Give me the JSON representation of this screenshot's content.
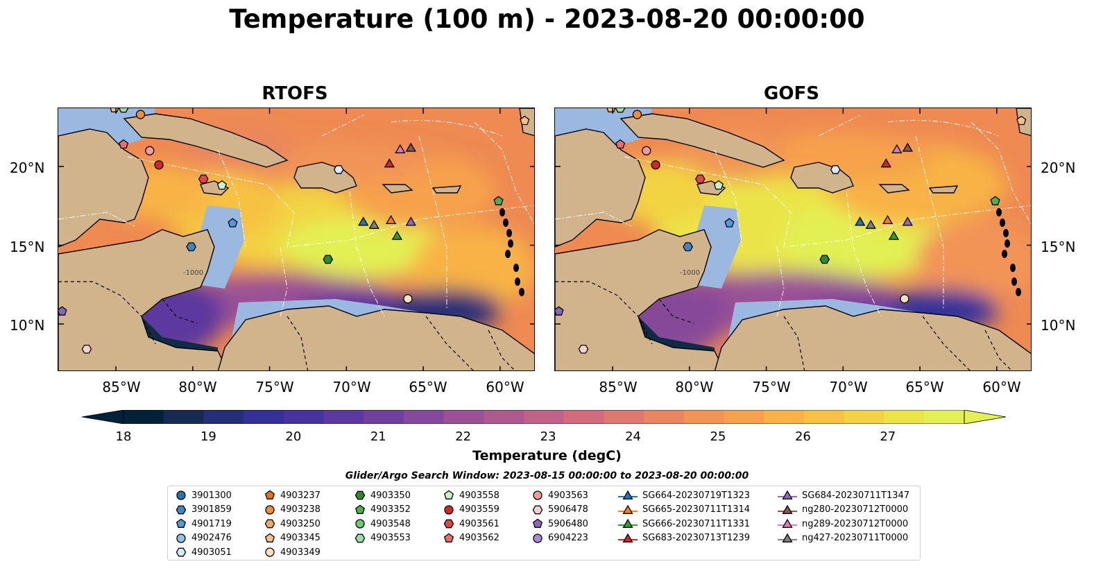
{
  "title": "Temperature (100 m) - 2023-08-20 00:00:00",
  "panels": [
    "RTOFS",
    "GOFS"
  ],
  "lat_labels": [
    "20°N",
    "15°N",
    "10°N"
  ],
  "lon_labels": [
    "85°W",
    "80°W",
    "75°W",
    "70°W",
    "65°W",
    "60°W"
  ],
  "colors": {
    "ocean_warm": "#f4a03c",
    "land": "#d2b48c",
    "shelf": "#9ab8e0",
    "deep": "#102a44"
  },
  "colorbar": {
    "label": "Temperature (degC)",
    "ticks": [
      "18",
      "19",
      "20",
      "21",
      "22",
      "23",
      "24",
      "25",
      "26",
      "27"
    ],
    "colors": [
      "#04213a",
      "#162a52",
      "#252f78",
      "#33309a",
      "#46339f",
      "#5b399f",
      "#71409c",
      "#86489a",
      "#9a5196",
      "#ae5a8f",
      "#c16388",
      "#d16c7d",
      "#de7870",
      "#e98661",
      "#f19456",
      "#f6a24c",
      "#f8b245",
      "#f7c243",
      "#f3d343",
      "#ebe449",
      "#e2f052"
    ]
  },
  "contour_label": "-1000",
  "search_window": "Glider/Argo Search Window: 2023-08-15 00:00:00 to 2023-08-20 00:00:00",
  "legend": [
    {
      "label": "3901300",
      "shape": "circle",
      "color": "#1f77b4"
    },
    {
      "label": "3901859",
      "shape": "hexagon",
      "color": "#3a88c4"
    },
    {
      "label": "4901719",
      "shape": "pentagon",
      "color": "#4f9ad8"
    },
    {
      "label": "4902476",
      "shape": "circle",
      "color": "#8fc1e6"
    },
    {
      "label": "4903051",
      "shape": "hexagon",
      "color": "#d6eaf8"
    },
    {
      "label": "4903237",
      "shape": "pentagon",
      "color": "#e6711d"
    },
    {
      "label": "4903238",
      "shape": "circle",
      "color": "#f28e3b"
    },
    {
      "label": "4903250",
      "shape": "hexagon",
      "color": "#f5a860"
    },
    {
      "label": "4903345",
      "shape": "pentagon",
      "color": "#f8c088"
    },
    {
      "label": "4903349",
      "shape": "circle",
      "color": "#fde0bf"
    },
    {
      "label": "4903350",
      "shape": "hexagon",
      "color": "#2c8a2c"
    },
    {
      "label": "4903352",
      "shape": "pentagon",
      "color": "#4caf4c"
    },
    {
      "label": "4903548",
      "shape": "circle",
      "color": "#6dcc6d"
    },
    {
      "label": "4903553",
      "shape": "hexagon",
      "color": "#99e09e"
    },
    {
      "label": "4903558",
      "shape": "pentagon",
      "color": "#c8f2c4"
    },
    {
      "label": "4903559",
      "shape": "circle",
      "color": "#d62728"
    },
    {
      "label": "4903561",
      "shape": "hexagon",
      "color": "#e04545"
    },
    {
      "label": "4903562",
      "shape": "pentagon",
      "color": "#ea6e6e"
    },
    {
      "label": "4903563",
      "shape": "circle",
      "color": "#f29b9b"
    },
    {
      "label": "5906478",
      "shape": "hexagon",
      "color": "#f9cfcf"
    },
    {
      "label": "5906480",
      "shape": "pentagon",
      "color": "#8a65c0"
    },
    {
      "label": "6904223",
      "shape": "circle",
      "color": "#a98ad6"
    },
    {
      "label": "SG664-20230719T1323",
      "shape": "triangle",
      "color": "#1f77b4"
    },
    {
      "label": "SG665-20230711T1314",
      "shape": "triangle",
      "color": "#ff7f0e"
    },
    {
      "label": "SG666-20230711T1331",
      "shape": "triangle",
      "color": "#2ca02c"
    },
    {
      "label": "SG683-20230713T1239",
      "shape": "triangle",
      "color": "#d62728"
    },
    {
      "label": "SG684-20230711T1347",
      "shape": "triangle",
      "color": "#9467bd"
    },
    {
      "label": "ng280-20230712T0000",
      "shape": "triangle",
      "color": "#8c564b"
    },
    {
      "label": "ng289-20230712T0000",
      "shape": "triangle",
      "color": "#e377c2"
    },
    {
      "label": "ng427-20230711T0000",
      "shape": "triangle",
      "color": "#7f7f7f"
    }
  ],
  "markers": [
    {
      "label": "4903345",
      "lon": -85.1,
      "lat": 23.7
    },
    {
      "label": "4903553",
      "lon": -84.5,
      "lat": 23.7
    },
    {
      "label": "4903238",
      "lon": -83.4,
      "lat": 23.3
    },
    {
      "label": "4903562",
      "lon": -84.5,
      "lat": 21.4
    },
    {
      "label": "4903563",
      "lon": -82.8,
      "lat": 21.0
    },
    {
      "label": "4903559",
      "lon": -82.2,
      "lat": 20.1
    },
    {
      "label": "4903561",
      "lon": -79.3,
      "lat": 19.2
    },
    {
      "label": "4903558",
      "lon": -78.1,
      "lat": 18.8
    },
    {
      "label": "4901719",
      "lon": -77.4,
      "lat": 16.4
    },
    {
      "label": "3901859",
      "lon": -80.1,
      "lat": 14.9
    },
    {
      "label": "4903051",
      "lon": -70.5,
      "lat": 19.8
    },
    {
      "label": "4903350",
      "lon": -71.2,
      "lat": 14.1
    },
    {
      "label": "4903352",
      "lon": -60.1,
      "lat": 17.8
    },
    {
      "label": "4903349",
      "lon": -66.0,
      "lat": 11.6
    },
    {
      "label": "4903345",
      "lon": -58.4,
      "lat": 22.9
    },
    {
      "label": "5906478",
      "lon": -86.9,
      "lat": 8.4
    },
    {
      "label": "5906480",
      "lon": -88.5,
      "lat": 10.8
    },
    {
      "label": "SG664-20230719T1323",
      "lon": -68.9,
      "lat": 16.5
    },
    {
      "label": "ng427-20230711T0000",
      "lon": -68.2,
      "lat": 16.3
    },
    {
      "label": "SG665-20230711T1314",
      "lon": -67.1,
      "lat": 16.6
    },
    {
      "label": "SG684-20230711T1347",
      "lon": -65.8,
      "lat": 16.5
    },
    {
      "label": "SG666-20230711T1331",
      "lon": -66.7,
      "lat": 15.6
    },
    {
      "label": "SG683-20230713T1239",
      "lon": -67.2,
      "lat": 20.2
    },
    {
      "label": "ng289-20230712T0000",
      "lon": -66.5,
      "lat": 21.1
    },
    {
      "label": "ng280-20230712T0000",
      "lon": -65.8,
      "lat": 21.2
    }
  ]
}
